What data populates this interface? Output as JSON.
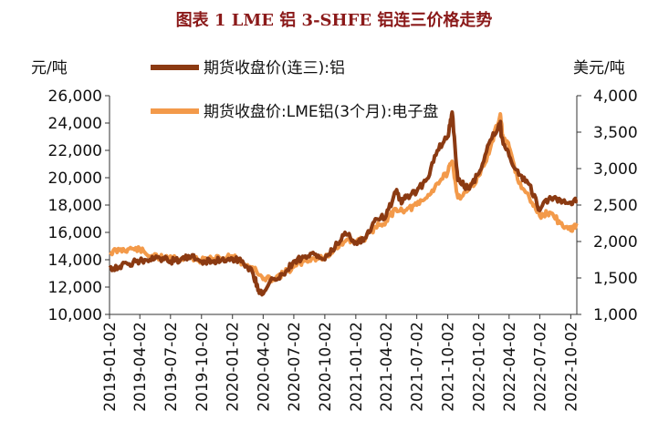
{
  "chart_data": {
    "type": "line",
    "title": "图表 1 LME 铝 3-SHFE 铝连三价格走势",
    "colors": {
      "title": "#8b1a1a",
      "series_shfe": "#8b3a12",
      "series_lme": "#f39a4a"
    },
    "y_left_unit": "元/吨",
    "y_right_unit": "美元/吨",
    "y_left": {
      "min": 10000,
      "max": 26000,
      "ticks": [
        "10,000",
        "12,000",
        "14,000",
        "16,000",
        "18,000",
        "20,000",
        "22,000",
        "24,000",
        "26,000"
      ]
    },
    "y_right": {
      "min": 1000,
      "max": 4000,
      "ticks": [
        "1,000",
        "1,500",
        "2,000",
        "2,500",
        "3,000",
        "3,500",
        "4,000"
      ]
    },
    "x": {
      "range": [
        "2019-01-02",
        "2022-10-20"
      ],
      "ticks": [
        "2019-01-02",
        "2019-04-02",
        "2019-07-02",
        "2019-10-02",
        "2020-01-02",
        "2020-04-02",
        "2020-07-02",
        "2020-10-02",
        "2021-01-02",
        "2021-04-02",
        "2021-07-02",
        "2021-10-02",
        "2022-01-02",
        "2022-04-02",
        "2022-07-02",
        "2022-10-02"
      ]
    },
    "legend_position": "top",
    "grid": false,
    "series": [
      {
        "name": "期货收盘价(连三):铝",
        "axis": "left",
        "color": "#8b3a12",
        "points": [
          [
            "2019-01-02",
            13400
          ],
          [
            "2019-02-01",
            13500
          ],
          [
            "2019-03-01",
            13700
          ],
          [
            "2019-04-02",
            13900
          ],
          [
            "2019-05-01",
            14000
          ],
          [
            "2019-06-01",
            14100
          ],
          [
            "2019-07-02",
            13900
          ],
          [
            "2019-08-01",
            14000
          ],
          [
            "2019-09-01",
            14200
          ],
          [
            "2019-10-02",
            13900
          ],
          [
            "2019-11-01",
            13900
          ],
          [
            "2019-12-01",
            14000
          ],
          [
            "2020-01-02",
            14100
          ],
          [
            "2020-02-01",
            13900
          ],
          [
            "2020-03-01",
            13100
          ],
          [
            "2020-03-20",
            11800
          ],
          [
            "2020-04-02",
            11500
          ],
          [
            "2020-05-01",
            12600
          ],
          [
            "2020-06-01",
            12900
          ],
          [
            "2020-07-02",
            13900
          ],
          [
            "2020-08-01",
            14200
          ],
          [
            "2020-09-01",
            14400
          ],
          [
            "2020-10-02",
            14000
          ],
          [
            "2020-11-01",
            14900
          ],
          [
            "2020-12-01",
            16000
          ],
          [
            "2021-01-02",
            15300
          ],
          [
            "2021-02-01",
            15600
          ],
          [
            "2021-03-01",
            17000
          ],
          [
            "2021-04-02",
            17200
          ],
          [
            "2021-05-01",
            19000
          ],
          [
            "2021-05-20",
            18200
          ],
          [
            "2021-06-01",
            18600
          ],
          [
            "2021-07-02",
            19000
          ],
          [
            "2021-08-01",
            19900
          ],
          [
            "2021-09-01",
            22000
          ],
          [
            "2021-10-02",
            23000
          ],
          [
            "2021-10-15",
            24800
          ],
          [
            "2021-11-01",
            19800
          ],
          [
            "2021-12-01",
            19200
          ],
          [
            "2022-01-02",
            20300
          ],
          [
            "2022-02-01",
            22500
          ],
          [
            "2022-03-07",
            24000
          ],
          [
            "2022-03-10",
            23000
          ],
          [
            "2022-04-02",
            21600
          ],
          [
            "2022-05-01",
            20200
          ],
          [
            "2022-06-01",
            19500
          ],
          [
            "2022-07-02",
            17600
          ],
          [
            "2022-08-01",
            18600
          ],
          [
            "2022-09-01",
            18400
          ],
          [
            "2022-10-02",
            18200
          ],
          [
            "2022-10-20",
            18300
          ]
        ]
      },
      {
        "name": "期货收盘价:LME铝(3个月):电子盘",
        "axis": "right",
        "color": "#f39a4a",
        "points": [
          [
            "2019-01-02",
            1850
          ],
          [
            "2019-02-01",
            1880
          ],
          [
            "2019-03-01",
            1900
          ],
          [
            "2019-04-02",
            1890
          ],
          [
            "2019-05-01",
            1800
          ],
          [
            "2019-06-01",
            1780
          ],
          [
            "2019-07-02",
            1800
          ],
          [
            "2019-08-01",
            1760
          ],
          [
            "2019-09-01",
            1780
          ],
          [
            "2019-10-02",
            1740
          ],
          [
            "2019-11-01",
            1760
          ],
          [
            "2019-12-01",
            1770
          ],
          [
            "2020-01-02",
            1800
          ],
          [
            "2020-02-01",
            1700
          ],
          [
            "2020-03-01",
            1650
          ],
          [
            "2020-04-02",
            1480
          ],
          [
            "2020-05-01",
            1490
          ],
          [
            "2020-06-01",
            1560
          ],
          [
            "2020-07-02",
            1650
          ],
          [
            "2020-08-01",
            1730
          ],
          [
            "2020-09-01",
            1770
          ],
          [
            "2020-10-02",
            1780
          ],
          [
            "2020-11-01",
            1900
          ],
          [
            "2020-12-01",
            2000
          ],
          [
            "2021-01-02",
            2000
          ],
          [
            "2021-02-01",
            2050
          ],
          [
            "2021-03-01",
            2200
          ],
          [
            "2021-04-02",
            2280
          ],
          [
            "2021-05-01",
            2450
          ],
          [
            "2021-06-01",
            2430
          ],
          [
            "2021-07-02",
            2500
          ],
          [
            "2021-08-01",
            2600
          ],
          [
            "2021-09-01",
            2800
          ],
          [
            "2021-10-02",
            2950
          ],
          [
            "2021-10-15",
            3100
          ],
          [
            "2021-11-01",
            2600
          ],
          [
            "2021-12-01",
            2700
          ],
          [
            "2022-01-02",
            2900
          ],
          [
            "2022-02-01",
            3200
          ],
          [
            "2022-03-07",
            3750
          ],
          [
            "2022-03-15",
            3400
          ],
          [
            "2022-04-02",
            3300
          ],
          [
            "2022-05-01",
            2800
          ],
          [
            "2022-06-01",
            2600
          ],
          [
            "2022-07-02",
            2350
          ],
          [
            "2022-08-01",
            2400
          ],
          [
            "2022-09-01",
            2250
          ],
          [
            "2022-10-02",
            2150
          ],
          [
            "2022-10-20",
            2250
          ]
        ]
      }
    ]
  }
}
